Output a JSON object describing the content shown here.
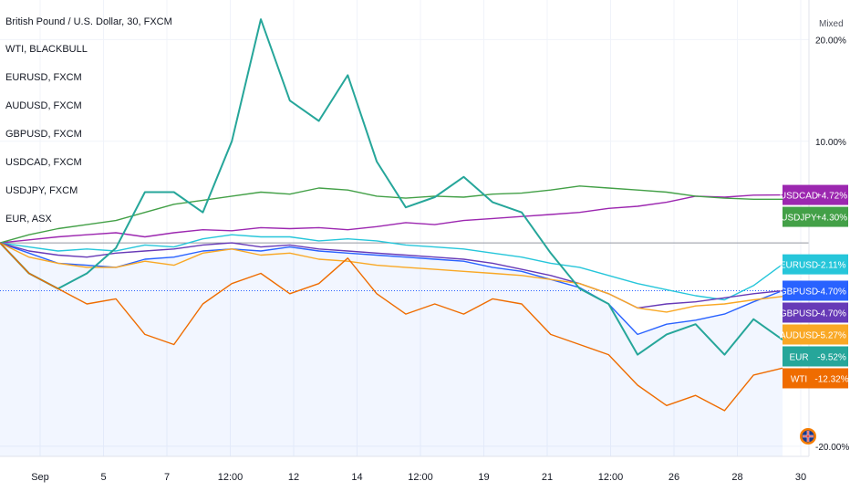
{
  "header": {
    "symbol_title": "British Pound / U.S. Dollar, 30, FXCM",
    "scale_mode": "Mixed"
  },
  "legend": [
    "WTI, BLACKBULL",
    "EURUSD, FXCM",
    "AUDUSD, FXCM",
    "GBPUSD, FXCM",
    "USDCAD, FXCM",
    "USDJPY, FXCM",
    "EUR, ASX"
  ],
  "chart_data": {
    "type": "line",
    "y_unit": "%",
    "ylim": [
      -21,
      23
    ],
    "y_ticks": [
      {
        "value": 20,
        "label": "20.00%"
      },
      {
        "value": 10,
        "label": "10.00%"
      },
      {
        "value": -20,
        "label": "-20.00%"
      }
    ],
    "x_ticks": [
      "Sep",
      "5",
      "7",
      "12:00",
      "12",
      "14",
      "12:00",
      "19",
      "21",
      "12:00",
      "26",
      "28",
      "30"
    ],
    "grid": true,
    "series": [
      {
        "name": "USDCAD",
        "color": "#9c27b0",
        "end_label": "+4.72%",
        "values": [
          0,
          0.3,
          0.6,
          0.8,
          1.0,
          0.6,
          1.0,
          1.3,
          1.2,
          1.5,
          1.4,
          1.5,
          1.3,
          1.6,
          2.0,
          1.8,
          2.2,
          2.4,
          2.6,
          2.8,
          3.0,
          3.4,
          3.6,
          4.0,
          4.6,
          4.5,
          4.7,
          4.72
        ]
      },
      {
        "name": "USDJPY",
        "color": "#43a047",
        "end_label": "+4.30%",
        "values": [
          0,
          0.8,
          1.4,
          1.8,
          2.2,
          3.0,
          3.8,
          4.2,
          4.6,
          5.0,
          4.8,
          5.4,
          5.2,
          4.6,
          4.4,
          4.6,
          4.5,
          4.8,
          4.9,
          5.2,
          5.6,
          5.4,
          5.2,
          5.0,
          4.6,
          4.4,
          4.3,
          4.3
        ]
      },
      {
        "name": "EURUSD",
        "color": "#26c6da",
        "end_label": "-2.11%",
        "values": [
          0,
          -0.4,
          -0.8,
          -0.6,
          -0.8,
          -0.2,
          -0.4,
          0.4,
          0.8,
          0.6,
          0.6,
          0.2,
          0.4,
          0.2,
          -0.2,
          -0.4,
          -0.6,
          -1.0,
          -1.4,
          -2.0,
          -2.4,
          -3.2,
          -4.0,
          -4.6,
          -5.2,
          -5.6,
          -4.2,
          -2.11
        ]
      },
      {
        "name": "GBPUSD",
        "color": "#2962ff",
        "end_label": "-4.70%",
        "values": [
          0,
          -1.0,
          -2.0,
          -2.2,
          -2.4,
          -1.6,
          -1.4,
          -0.8,
          -0.6,
          -0.8,
          -0.4,
          -0.8,
          -1.0,
          -1.2,
          -1.4,
          -1.6,
          -1.8,
          -2.4,
          -2.8,
          -3.6,
          -4.4,
          -6.0,
          -9.0,
          -8.0,
          -7.6,
          -7.0,
          -5.8,
          -4.7
        ]
      },
      {
        "name": "GBPUSD",
        "color": "#673ab7",
        "end_label": "-4.70%",
        "values": [
          0,
          -0.8,
          -1.2,
          -1.4,
          -1.0,
          -0.8,
          -0.6,
          -0.2,
          0.0,
          -0.4,
          -0.2,
          -0.6,
          -0.8,
          -1.0,
          -1.2,
          -1.4,
          -1.6,
          -2.0,
          -2.6,
          -3.2,
          -4.0,
          -5.0,
          -6.4,
          -6.0,
          -5.8,
          -5.4,
          -5.0,
          -4.7
        ]
      },
      {
        "name": "AUDUSD",
        "color": "#f9a825",
        "end_label": "-5.27%",
        "values": [
          0,
          -1.4,
          -2.0,
          -2.4,
          -2.4,
          -1.8,
          -2.2,
          -1.0,
          -0.6,
          -1.2,
          -1.0,
          -1.6,
          -1.8,
          -2.2,
          -2.4,
          -2.6,
          -2.8,
          -3.0,
          -3.2,
          -3.6,
          -4.0,
          -5.0,
          -6.4,
          -6.8,
          -6.2,
          -6.0,
          -5.6,
          -5.27
        ]
      },
      {
        "name": "EUR",
        "color": "#26a69a",
        "end_label": "-9.52%",
        "values": [
          0,
          -3.0,
          -4.5,
          -3.0,
          -0.5,
          5.0,
          5.0,
          3.0,
          10.0,
          22.0,
          14.0,
          12.0,
          16.5,
          8.0,
          3.5,
          4.5,
          6.5,
          4.0,
          3.0,
          -1.0,
          -4.5,
          -6.0,
          -11.0,
          -9.0,
          -8.0,
          -11.0,
          -7.5,
          -9.52
        ]
      },
      {
        "name": "WTI",
        "color": "#ef6c00",
        "end_label": "-12.32%",
        "values": [
          0,
          -3.0,
          -4.5,
          -6.0,
          -5.5,
          -9.0,
          -10.0,
          -6.0,
          -4.0,
          -3.0,
          -5.0,
          -4.0,
          -1.5,
          -5.0,
          -7.0,
          -6.0,
          -7.0,
          -5.5,
          -6.0,
          -9.0,
          -10.0,
          -11.0,
          -14.0,
          -16.0,
          -15.0,
          -16.5,
          -13.0,
          -12.32
        ]
      }
    ]
  }
}
